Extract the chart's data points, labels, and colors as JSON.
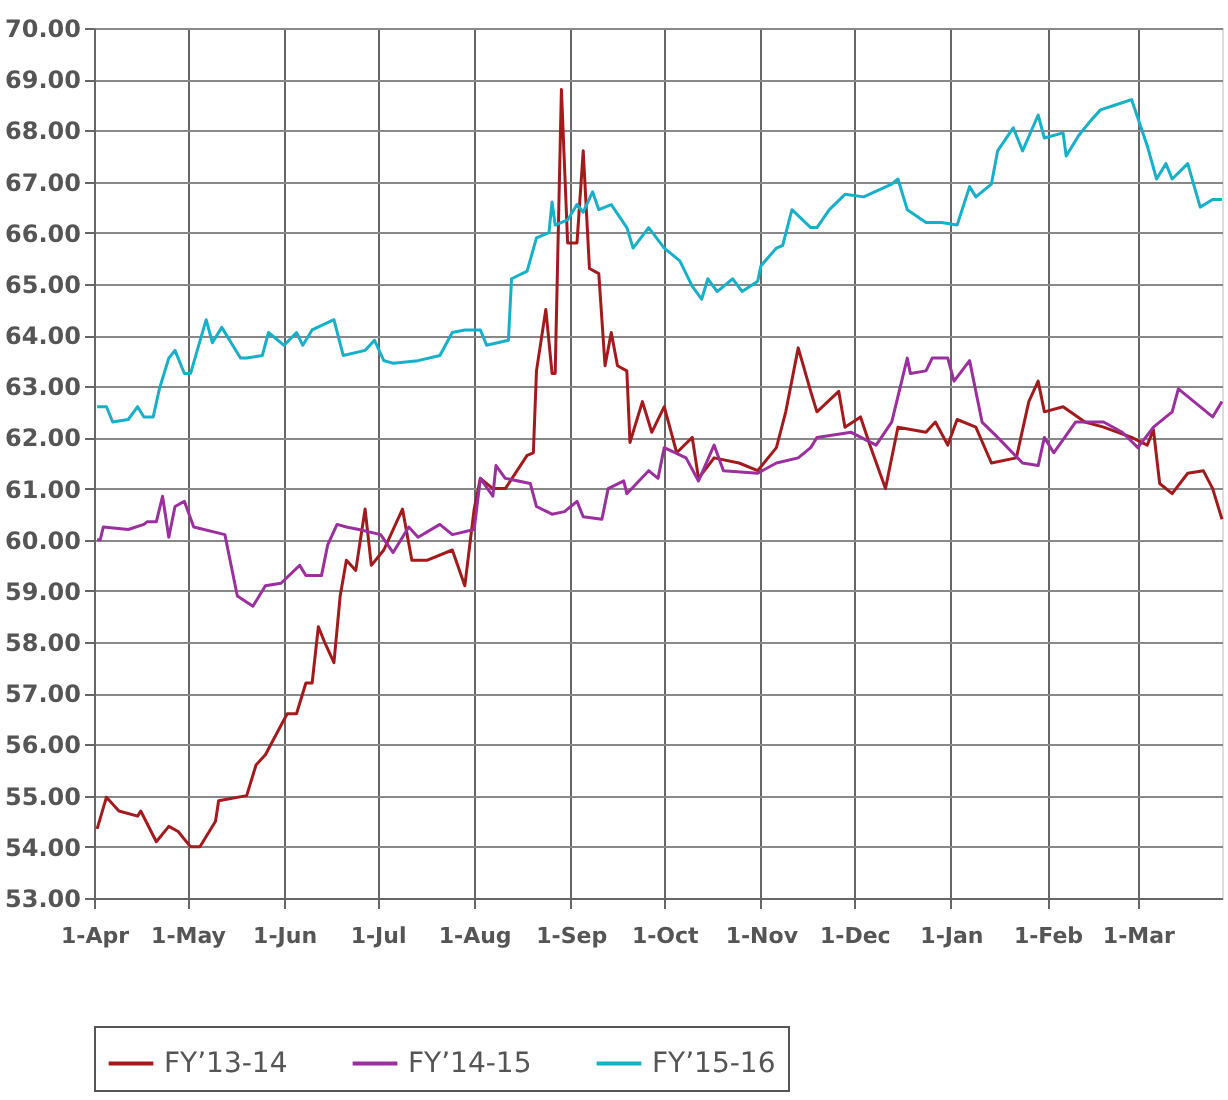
{
  "chart_data": {
    "type": "line",
    "xlim": [
      "2015-04-01",
      "2016-03-28"
    ],
    "xticks": [
      {
        "value": "2015-04-01",
        "label": "1-Apr"
      },
      {
        "value": "2015-05-01",
        "label": "1-May"
      },
      {
        "value": "2015-06-01",
        "label": "1-Jun"
      },
      {
        "value": "2015-07-01",
        "label": "1-Jul"
      },
      {
        "value": "2015-08-01",
        "label": "1-Aug"
      },
      {
        "value": "2015-09-01",
        "label": "1-Sep"
      },
      {
        "value": "2015-10-01",
        "label": "1-Oct"
      },
      {
        "value": "2015-11-01",
        "label": "1-Nov"
      },
      {
        "value": "2015-12-01",
        "label": "1-Dec"
      },
      {
        "value": "2016-01-01",
        "label": "1-Jan"
      },
      {
        "value": "2016-02-01",
        "label": "1-Feb"
      },
      {
        "value": "2016-03-01",
        "label": "1-Mar"
      }
    ],
    "ylim": [
      53,
      70
    ],
    "yticks": [
      {
        "value": 53,
        "label": "53.00"
      },
      {
        "value": 54,
        "label": "54.00"
      },
      {
        "value": 55,
        "label": "55.00"
      },
      {
        "value": 56,
        "label": "56.00"
      },
      {
        "value": 57,
        "label": "57.00"
      },
      {
        "value": 58,
        "label": "58.00"
      },
      {
        "value": 59,
        "label": "59.00"
      },
      {
        "value": 60,
        "label": "60.00"
      },
      {
        "value": 61,
        "label": "61.00"
      },
      {
        "value": 62,
        "label": "62.00"
      },
      {
        "value": 63,
        "label": "63.00"
      },
      {
        "value": 64,
        "label": "64.00"
      },
      {
        "value": 65,
        "label": "65.00"
      },
      {
        "value": 66,
        "label": "66.00"
      },
      {
        "value": 67,
        "label": "67.00"
      },
      {
        "value": 68,
        "label": "68.00"
      },
      {
        "value": 69,
        "label": "69.00"
      },
      {
        "value": 70,
        "label": "70.00"
      }
    ],
    "grid": true,
    "legend": "bottom",
    "marker": "none",
    "line_style": "solid",
    "series": [
      {
        "name": "FY’13-14",
        "color": "#a31a1d",
        "x": [
          "2015-04-02",
          "2015-04-05",
          "2015-04-09",
          "2015-04-15",
          "2015-04-16",
          "2015-04-21",
          "2015-04-25",
          "2015-04-28",
          "2015-05-02",
          "2015-05-05",
          "2015-05-10",
          "2015-05-11",
          "2015-05-20",
          "2015-05-23",
          "2015-05-26",
          "2015-06-02",
          "2015-06-05",
          "2015-06-08",
          "2015-06-10",
          "2015-06-12",
          "2015-06-14",
          "2015-06-17",
          "2015-06-19",
          "2015-06-21",
          "2015-06-24",
          "2015-06-27",
          "2015-06-29",
          "2015-07-03",
          "2015-07-06",
          "2015-07-09",
          "2015-07-12",
          "2015-07-17",
          "2015-07-25",
          "2015-07-29",
          "2015-08-01",
          "2015-08-03",
          "2015-08-07",
          "2015-08-11",
          "2015-08-18",
          "2015-08-20",
          "2015-08-21",
          "2015-08-24",
          "2015-08-26",
          "2015-08-27",
          "2015-08-29",
          "2015-08-31",
          "2015-09-03",
          "2015-09-05",
          "2015-09-07",
          "2015-09-10",
          "2015-09-12",
          "2015-09-14",
          "2015-09-16",
          "2015-09-19",
          "2015-09-20",
          "2015-09-24",
          "2015-09-27",
          "2015-10-01",
          "2015-10-05",
          "2015-10-10",
          "2015-10-12",
          "2015-10-17",
          "2015-10-25",
          "2015-10-31",
          "2015-11-06",
          "2015-11-09",
          "2015-11-13",
          "2015-11-17",
          "2015-11-19",
          "2015-11-26",
          "2015-11-28",
          "2015-12-03",
          "2015-12-06",
          "2015-12-11",
          "2015-12-15",
          "2015-12-24",
          "2015-12-27",
          "2015-12-31",
          "2016-01-03",
          "2016-01-09",
          "2016-01-14",
          "2016-01-22",
          "2016-01-26",
          "2016-01-29",
          "2016-01-31",
          "2016-02-06",
          "2016-02-13",
          "2016-02-19",
          "2016-02-28",
          "2016-03-04",
          "2016-03-06",
          "2016-03-08",
          "2016-03-12",
          "2016-03-17",
          "2016-03-22",
          "2016-03-25",
          "2016-03-28"
        ],
        "values": [
          54.35,
          54.97,
          54.7,
          54.6,
          54.7,
          54.1,
          54.4,
          54.3,
          54.0,
          54.0,
          54.5,
          54.9,
          55.0,
          55.6,
          55.8,
          56.6,
          56.6,
          57.2,
          57.2,
          58.3,
          58.0,
          57.6,
          58.9,
          59.6,
          59.4,
          60.6,
          59.5,
          59.8,
          60.2,
          60.6,
          59.6,
          59.6,
          59.8,
          59.1,
          60.6,
          61.2,
          61.0,
          61.0,
          61.65,
          61.7,
          63.3,
          64.5,
          63.25,
          63.25,
          68.8,
          65.8,
          65.8,
          67.6,
          65.3,
          65.2,
          63.4,
          64.05,
          63.4,
          63.3,
          61.9,
          62.7,
          62.1,
          62.6,
          61.7,
          62.0,
          61.2,
          61.6,
          61.5,
          61.35,
          61.8,
          62.5,
          63.75,
          62.9,
          62.5,
          62.9,
          62.2,
          62.4,
          61.85,
          61.0,
          62.2,
          62.1,
          62.3,
          61.85,
          62.35,
          62.2,
          61.5,
          61.6,
          62.7,
          63.1,
          62.5,
          62.6,
          62.3,
          62.2,
          62.0,
          61.85,
          62.15,
          61.1,
          60.9,
          61.3,
          61.35,
          61.0,
          60.4
        ]
      },
      {
        "name": "FY’14-15",
        "color": "#9b2f9e",
        "x": [
          "2015-04-02",
          "2015-04-03",
          "2015-04-04",
          "2015-04-12",
          "2015-04-17",
          "2015-04-18",
          "2015-04-21",
          "2015-04-23",
          "2015-04-25",
          "2015-04-27",
          "2015-04-30",
          "2015-05-03",
          "2015-05-13",
          "2015-05-17",
          "2015-05-22",
          "2015-05-26",
          "2015-05-31",
          "2015-06-06",
          "2015-06-08",
          "2015-06-13",
          "2015-06-15",
          "2015-06-18",
          "2015-06-21",
          "2015-06-25",
          "2015-07-02",
          "2015-07-06",
          "2015-07-11",
          "2015-07-14",
          "2015-07-21",
          "2015-07-25",
          "2015-08-01",
          "2015-08-03",
          "2015-08-07",
          "2015-08-08",
          "2015-08-11",
          "2015-08-19",
          "2015-08-21",
          "2015-08-26",
          "2015-08-30",
          "2015-09-03",
          "2015-09-05",
          "2015-09-11",
          "2015-09-13",
          "2015-09-18",
          "2015-09-19",
          "2015-09-26",
          "2015-09-29",
          "2015-10-01",
          "2015-10-08",
          "2015-10-12",
          "2015-10-17",
          "2015-10-20",
          "2015-10-31",
          "2015-11-06",
          "2015-11-13",
          "2015-11-17",
          "2015-11-19",
          "2015-11-30",
          "2015-12-08",
          "2015-12-13",
          "2015-12-18",
          "2015-12-19",
          "2015-12-24",
          "2015-12-26",
          "2015-12-31",
          "2016-01-02",
          "2016-01-07",
          "2016-01-11",
          "2016-01-16",
          "2016-01-24",
          "2016-01-29",
          "2016-01-31",
          "2016-02-03",
          "2016-02-10",
          "2016-02-19",
          "2016-02-25",
          "2016-03-01",
          "2016-03-06",
          "2016-03-12",
          "2016-03-14",
          "2016-03-19",
          "2016-03-25",
          "2016-03-28"
        ],
        "values": [
          60.0,
          60.0,
          60.25,
          60.2,
          60.3,
          60.35,
          60.35,
          60.85,
          60.05,
          60.65,
          60.75,
          60.25,
          60.1,
          58.9,
          58.7,
          59.1,
          59.15,
          59.5,
          59.3,
          59.3,
          59.9,
          60.3,
          60.25,
          60.2,
          60.1,
          59.75,
          60.25,
          60.05,
          60.3,
          60.1,
          60.2,
          61.2,
          60.85,
          61.45,
          61.2,
          61.1,
          60.65,
          60.5,
          60.55,
          60.75,
          60.45,
          60.4,
          61.0,
          61.15,
          60.9,
          61.35,
          61.2,
          61.8,
          61.6,
          61.15,
          61.85,
          61.35,
          61.3,
          61.5,
          61.6,
          61.8,
          62.0,
          62.1,
          61.85,
          62.3,
          63.55,
          63.25,
          63.3,
          63.55,
          63.55,
          63.1,
          63.5,
          62.3,
          62.0,
          61.5,
          61.45,
          62.0,
          61.7,
          62.3,
          62.3,
          62.1,
          61.8,
          62.2,
          62.5,
          62.95,
          62.7,
          62.4,
          62.7
        ]
      },
      {
        "name": "FY’15-16",
        "color": "#16b0c8",
        "x": [
          "2015-04-02",
          "2015-04-05",
          "2015-04-07",
          "2015-04-12",
          "2015-04-15",
          "2015-04-17",
          "2015-04-20",
          "2015-04-22",
          "2015-04-25",
          "2015-04-27",
          "2015-04-30",
          "2015-05-02",
          "2015-05-07",
          "2015-05-09",
          "2015-05-12",
          "2015-05-18",
          "2015-05-20",
          "2015-05-25",
          "2015-05-27",
          "2015-06-01",
          "2015-06-05",
          "2015-06-07",
          "2015-06-10",
          "2015-06-17",
          "2015-06-20",
          "2015-06-27",
          "2015-06-30",
          "2015-07-03",
          "2015-07-06",
          "2015-07-14",
          "2015-07-21",
          "2015-07-25",
          "2015-07-29",
          "2015-08-03",
          "2015-08-05",
          "2015-08-12",
          "2015-08-13",
          "2015-08-18",
          "2015-08-21",
          "2015-08-25",
          "2015-08-26",
          "2015-08-27",
          "2015-08-31",
          "2015-09-03",
          "2015-09-05",
          "2015-09-08",
          "2015-09-10",
          "2015-09-14",
          "2015-09-19",
          "2015-09-21",
          "2015-09-26",
          "2015-10-01",
          "2015-10-06",
          "2015-10-10",
          "2015-10-13",
          "2015-10-15",
          "2015-10-18",
          "2015-10-23",
          "2015-10-26",
          "2015-10-31",
          "2015-11-01",
          "2015-11-06",
          "2015-11-08",
          "2015-11-11",
          "2015-11-17",
          "2015-11-19",
          "2015-11-23",
          "2015-11-28",
          "2015-12-04",
          "2015-12-13",
          "2015-12-15",
          "2015-12-18",
          "2015-12-24",
          "2015-12-29",
          "2016-01-03",
          "2016-01-07",
          "2016-01-09",
          "2016-01-14",
          "2016-01-16",
          "2016-01-21",
          "2016-01-24",
          "2016-01-29",
          "2016-01-31",
          "2016-02-06",
          "2016-02-07",
          "2016-02-11",
          "2016-02-15",
          "2016-02-18",
          "2016-02-23",
          "2016-02-28",
          "2016-03-04",
          "2016-03-07",
          "2016-03-10",
          "2016-03-12",
          "2016-03-17",
          "2016-03-21",
          "2016-03-25",
          "2016-03-28"
        ],
        "values": [
          62.6,
          62.6,
          62.3,
          62.35,
          62.6,
          62.4,
          62.4,
          62.95,
          63.55,
          63.7,
          63.25,
          63.25,
          64.3,
          63.85,
          64.15,
          63.55,
          63.55,
          63.6,
          64.05,
          63.8,
          64.05,
          63.8,
          64.1,
          64.3,
          63.6,
          63.7,
          63.9,
          63.5,
          63.45,
          63.5,
          63.6,
          64.05,
          64.1,
          64.1,
          63.8,
          63.9,
          65.1,
          65.25,
          65.9,
          66.0,
          66.6,
          66.15,
          66.25,
          66.55,
          66.4,
          66.8,
          66.45,
          66.55,
          66.1,
          65.7,
          66.1,
          65.7,
          65.45,
          64.95,
          64.7,
          65.1,
          64.85,
          65.1,
          64.85,
          65.05,
          65.35,
          65.7,
          65.75,
          66.45,
          66.1,
          66.1,
          66.45,
          66.75,
          66.7,
          66.95,
          67.05,
          66.45,
          66.2,
          66.2,
          66.15,
          66.9,
          66.7,
          66.95,
          67.6,
          68.05,
          67.6,
          68.3,
          67.85,
          67.95,
          67.5,
          67.9,
          68.2,
          68.4,
          68.5,
          68.6,
          67.7,
          67.05,
          67.35,
          67.05,
          67.35,
          66.5,
          66.65,
          66.65
        ]
      }
    ]
  }
}
